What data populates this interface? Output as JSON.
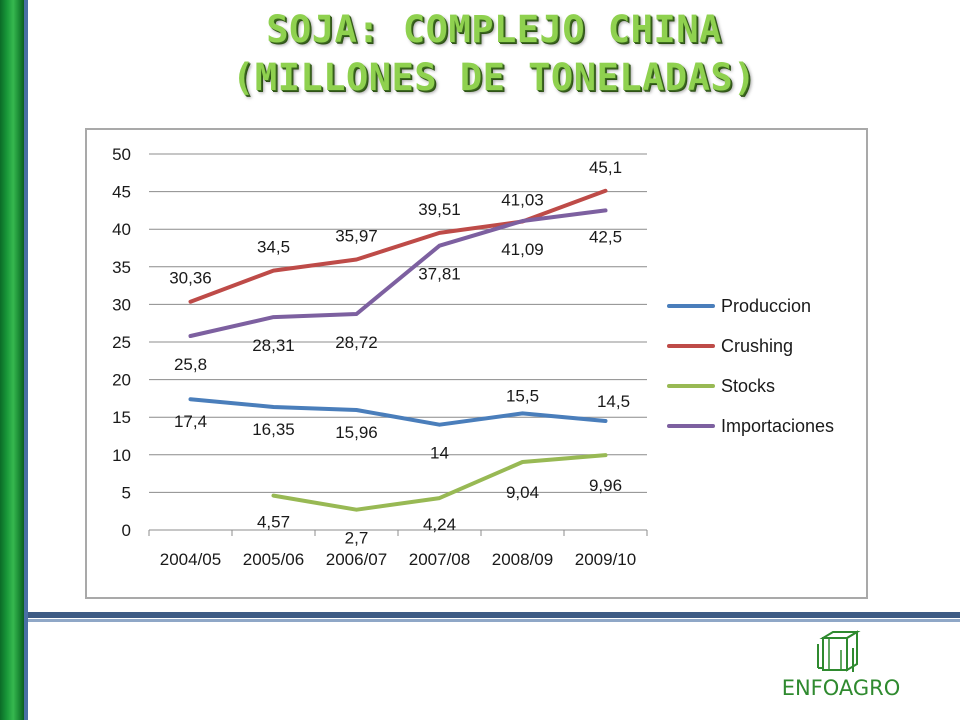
{
  "slide": {
    "title_line1": "SOJA: COMPLEJO CHINA",
    "title_line2": "(MILLONES DE TONELADAS)",
    "logo_text": "ENFOAGRO"
  },
  "chart_data": {
    "type": "line",
    "categories": [
      "2004/05",
      "2005/06",
      "2006/07",
      "2007/08",
      "2008/09",
      "2009/10"
    ],
    "ylim": [
      0,
      50
    ],
    "yticks": [
      0,
      5,
      10,
      15,
      20,
      25,
      30,
      35,
      40,
      45,
      50
    ],
    "grid": true,
    "legend_placement": "right",
    "series": [
      {
        "name": "Produccion",
        "color": "#4a7ebb",
        "values": [
          17.4,
          16.35,
          15.96,
          14,
          15.5,
          14.5
        ],
        "labels": [
          "17,4",
          "16,35",
          "15,96",
          "14",
          "15,5",
          "14,5"
        ]
      },
      {
        "name": "Crushing",
        "color": "#be4b48",
        "values": [
          30.36,
          34.5,
          35.97,
          39.51,
          41.03,
          45.1
        ],
        "labels": [
          "30,36",
          "34,5",
          "35,97",
          "39,51",
          "41,03",
          "45,1"
        ]
      },
      {
        "name": "Stocks",
        "color": "#98b954",
        "values": [
          null,
          4.57,
          2.7,
          4.24,
          9.04,
          9.96
        ],
        "labels": [
          null,
          "4,57",
          "2,7",
          "4,24",
          "9,04",
          "9,96"
        ]
      },
      {
        "name": "Importaciones",
        "color": "#7d60a0",
        "values": [
          25.8,
          28.31,
          28.72,
          37.81,
          41.09,
          42.5
        ],
        "labels": [
          "25,8",
          "28,31",
          "28,72",
          "37,81",
          "41,09",
          "42,5"
        ]
      }
    ]
  }
}
